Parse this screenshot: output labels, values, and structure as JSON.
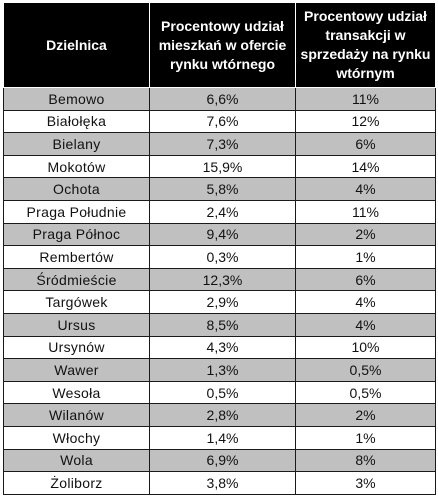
{
  "table": {
    "headers": [
      "Dzielnica",
      "Procentowy udział mieszkań w ofercie rynku wtórnego",
      "Procentowy udział transakcji w sprzedaży na rynku wtórnym"
    ],
    "rows": [
      [
        "Bemowo",
        "6,6%",
        "11%"
      ],
      [
        "Białołęka",
        "7,6%",
        "12%"
      ],
      [
        "Bielany",
        "7,3%",
        "6%"
      ],
      [
        "Mokotów",
        "15,9%",
        "14%"
      ],
      [
        "Ochota",
        "5,8%",
        "4%"
      ],
      [
        "Praga Południe",
        "2,4%",
        "11%"
      ],
      [
        "Praga Północ",
        "9,4%",
        "2%"
      ],
      [
        "Rembertów",
        "0,3%",
        "1%"
      ],
      [
        "Śródmieście",
        "12,3%",
        "6%"
      ],
      [
        "Targówek",
        "2,9%",
        "4%"
      ],
      [
        "Ursus",
        "8,5%",
        "4%"
      ],
      [
        "Ursynów",
        "4,3%",
        "10%"
      ],
      [
        "Wawer",
        "1,3%",
        "0,5%"
      ],
      [
        "Wesoła",
        "0,5%",
        "0,5%"
      ],
      [
        "Wilanów",
        "2,8%",
        "2%"
      ],
      [
        "Włochy",
        "1,4%",
        "1%"
      ],
      [
        "Wola",
        "6,9%",
        "8%"
      ],
      [
        "Żoliborz",
        "3,8%",
        "3%"
      ]
    ]
  },
  "colors": {
    "header_bg": "#000000",
    "header_text": "#ffffff",
    "row_shade": "#c0c0c0",
    "row_plain": "#ffffff"
  }
}
